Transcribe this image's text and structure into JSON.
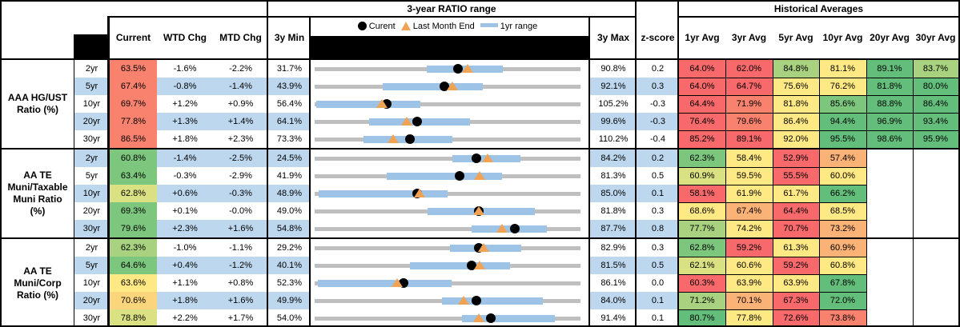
{
  "header": {
    "ratio_range_title": "3-year RATIO range",
    "historical_title": "Historical Averages",
    "legend": {
      "current": "Curent",
      "last_month": "Last Month End",
      "range": "1yr range"
    },
    "columns": {
      "current": "Current",
      "wtd": "WTD Chg",
      "mtd": "MTD Chg",
      "min": "3y Min",
      "max": "3y Max",
      "z": "z-score"
    },
    "avg_columns": [
      "1yr Avg",
      "3yr Avg",
      "5yr Avg",
      "10yr Avg",
      "20yr Avg",
      "30yr Avg"
    ]
  },
  "palette": {
    "red": "#F8696B",
    "salmon": "#F9826F",
    "orange": "#FBB277",
    "gold": "#FBD57B",
    "yellow": "#FFE984",
    "ygreen": "#DAE182",
    "lgreen": "#A8D27F",
    "mgreen": "#7CC67E",
    "green": "#63BE7B",
    "band_blue": "#BDD7EE",
    "bar_blue": "#9DC3E6",
    "track_gray": "#BFBFBF",
    "tri_orange": "#F0A355",
    "dot_black": "#000000"
  },
  "chart_data": {
    "type": "table",
    "title": "3-year RATIO range",
    "note": "Each row has a bullet chart: gray track spans 3y Min..3y Max, blue bar = 1yr range, black dot = Current, orange triangle = Last Month End. Values in percent.",
    "groups": [
      {
        "label": "AAA HG/UST Ratio (%)",
        "label_lines": [
          "AAA HG/UST",
          "Ratio (%)"
        ],
        "rows": [
          {
            "tenor": "2yr",
            "current": "63.5%",
            "current_color": "salmon",
            "wtd": "-1.6%",
            "mtd": "-2.2%",
            "min": "31.7%",
            "max": "90.8%",
            "z": "0.2",
            "range": {
              "min": 31.7,
              "max": 90.8,
              "bar_lo": 56.6,
              "bar_hi": 73.5,
              "current": 63.5,
              "last_month": 65.7
            },
            "avgs": [
              {
                "v": "64.0%",
                "c": "red"
              },
              {
                "v": "62.0%",
                "c": "red"
              },
              {
                "v": "84.8%",
                "c": "lgreen"
              },
              {
                "v": "81.1%",
                "c": "yellow"
              },
              {
                "v": "89.1%",
                "c": "green"
              },
              {
                "v": "83.7%",
                "c": "lgreen"
              }
            ]
          },
          {
            "tenor": "5yr",
            "current": "67.4%",
            "current_color": "salmon",
            "wtd": "-0.8%",
            "mtd": "-1.4%",
            "min": "43.9%",
            "max": "92.1%",
            "z": "0.3",
            "range": {
              "min": 43.9,
              "max": 92.1,
              "bar_lo": 56.2,
              "bar_hi": 74.4,
              "current": 67.4,
              "last_month": 68.8
            },
            "avgs": [
              {
                "v": "64.0%",
                "c": "red"
              },
              {
                "v": "64.7%",
                "c": "red"
              },
              {
                "v": "75.6%",
                "c": "yellow"
              },
              {
                "v": "76.2%",
                "c": "yellow"
              },
              {
                "v": "81.8%",
                "c": "green"
              },
              {
                "v": "80.0%",
                "c": "green"
              }
            ]
          },
          {
            "tenor": "10yr",
            "current": "69.7%",
            "current_color": "salmon",
            "wtd": "+1.2%",
            "mtd": "+0.9%",
            "min": "56.4%",
            "max": "105.2%",
            "z": "-0.3",
            "range": {
              "min": 56.4,
              "max": 105.2,
              "bar_lo": 56.7,
              "bar_hi": 75.8,
              "current": 69.7,
              "last_month": 68.8
            },
            "avgs": [
              {
                "v": "64.4%",
                "c": "red"
              },
              {
                "v": "71.9%",
                "c": "salmon"
              },
              {
                "v": "81.8%",
                "c": "yellow"
              },
              {
                "v": "85.6%",
                "c": "mgreen"
              },
              {
                "v": "88.8%",
                "c": "green"
              },
              {
                "v": "86.4%",
                "c": "green"
              }
            ]
          },
          {
            "tenor": "20yr",
            "current": "77.8%",
            "current_color": "salmon",
            "wtd": "+1.3%",
            "mtd": "+1.4%",
            "min": "64.1%",
            "max": "99.6%",
            "z": "-0.3",
            "range": {
              "min": 64.1,
              "max": 99.6,
              "bar_lo": 71.4,
              "bar_hi": 84.8,
              "current": 77.8,
              "last_month": 76.4
            },
            "avgs": [
              {
                "v": "76.4%",
                "c": "red"
              },
              {
                "v": "79.6%",
                "c": "salmon"
              },
              {
                "v": "86.4%",
                "c": "yellow"
              },
              {
                "v": "94.4%",
                "c": "green"
              },
              {
                "v": "96.9%",
                "c": "green"
              },
              {
                "v": "93.4%",
                "c": "green"
              }
            ]
          },
          {
            "tenor": "30yr",
            "current": "86.5%",
            "current_color": "salmon",
            "wtd": "+1.8%",
            "mtd": "+2.3%",
            "min": "73.3%",
            "max": "110.2%",
            "z": "-0.4",
            "range": {
              "min": 73.3,
              "max": 110.2,
              "bar_lo": 80.1,
              "bar_hi": 92.4,
              "current": 86.5,
              "last_month": 84.2
            },
            "avgs": [
              {
                "v": "85.2%",
                "c": "red"
              },
              {
                "v": "89.1%",
                "c": "red"
              },
              {
                "v": "92.0%",
                "c": "yellow"
              },
              {
                "v": "95.5%",
                "c": "green"
              },
              {
                "v": "98.6%",
                "c": "green"
              },
              {
                "v": "95.9%",
                "c": "green"
              }
            ]
          }
        ]
      },
      {
        "label": "AA TE Muni/Taxable Muni Ratio (%)",
        "label_lines": [
          "AA TE",
          "Muni/Taxable",
          "Muni Ratio",
          "(%)"
        ],
        "rows": [
          {
            "tenor": "2yr",
            "current": "60.8%",
            "current_color": "mgreen",
            "wtd": "-1.4%",
            "mtd": "-2.5%",
            "min": "24.5%",
            "max": "84.2%",
            "z": "0.2",
            "range": {
              "min": 24.5,
              "max": 84.2,
              "bar_lo": 55.4,
              "bar_hi": 70.7,
              "current": 60.8,
              "last_month": 63.3
            },
            "avgs": [
              {
                "v": "62.3%",
                "c": "mgreen"
              },
              {
                "v": "58.4%",
                "c": "yellow"
              },
              {
                "v": "52.9%",
                "c": "red"
              },
              {
                "v": "57.4%",
                "c": "orange"
              },
              null,
              null
            ]
          },
          {
            "tenor": "5yr",
            "current": "63.4%",
            "current_color": "mgreen",
            "wtd": "-0.3%",
            "mtd": "-2.9%",
            "min": "41.9%",
            "max": "81.3%",
            "z": "0.5",
            "range": {
              "min": 41.9,
              "max": 81.3,
              "bar_lo": 52.6,
              "bar_hi": 69.7,
              "current": 63.4,
              "last_month": 66.3
            },
            "avgs": [
              {
                "v": "60.9%",
                "c": "ygreen"
              },
              {
                "v": "59.5%",
                "c": "yellow"
              },
              {
                "v": "55.5%",
                "c": "red"
              },
              {
                "v": "60.0%",
                "c": "yellow"
              },
              null,
              null
            ]
          },
          {
            "tenor": "10yr",
            "current": "62.8%",
            "current_color": "ygreen",
            "wtd": "+0.6%",
            "mtd": "-0.3%",
            "min": "48.9%",
            "max": "85.0%",
            "z": "0.1",
            "range": {
              "min": 48.9,
              "max": 85.0,
              "bar_lo": 49.4,
              "bar_hi": 67.0,
              "current": 62.8,
              "last_month": 63.1
            },
            "avgs": [
              {
                "v": "58.1%",
                "c": "red"
              },
              {
                "v": "61.9%",
                "c": "yellow"
              },
              {
                "v": "61.7%",
                "c": "yellow"
              },
              {
                "v": "66.2%",
                "c": "green"
              },
              null,
              null
            ]
          },
          {
            "tenor": "20yr",
            "current": "69.3%",
            "current_color": "mgreen",
            "wtd": "+0.1%",
            "mtd": "-0.0%",
            "min": "49.0%",
            "max": "81.8%",
            "z": "0.3",
            "range": {
              "min": 49.0,
              "max": 81.8,
              "bar_lo": 62.9,
              "bar_hi": 76.2,
              "current": 69.3,
              "last_month": 69.3
            },
            "avgs": [
              {
                "v": "68.6%",
                "c": "yellow"
              },
              {
                "v": "67.4%",
                "c": "orange"
              },
              {
                "v": "64.4%",
                "c": "red"
              },
              {
                "v": "68.5%",
                "c": "yellow"
              },
              null,
              null
            ]
          },
          {
            "tenor": "30yr",
            "current": "79.6%",
            "current_color": "mgreen",
            "wtd": "+2.3%",
            "mtd": "+1.6%",
            "min": "54.8%",
            "max": "87.7%",
            "z": "0.8",
            "range": {
              "min": 54.8,
              "max": 87.7,
              "bar_lo": 74.2,
              "bar_hi": 83.5,
              "current": 79.6,
              "last_month": 78.0
            },
            "avgs": [
              {
                "v": "77.7%",
                "c": "lgreen"
              },
              {
                "v": "74.2%",
                "c": "yellow"
              },
              {
                "v": "70.7%",
                "c": "red"
              },
              {
                "v": "73.2%",
                "c": "orange"
              },
              null,
              null
            ]
          }
        ]
      },
      {
        "label": "AA TE Muni/Corp Ratio (%)",
        "label_lines": [
          "AA TE",
          "Muni/Corp",
          "Ratio (%)"
        ],
        "rows": [
          {
            "tenor": "2yr",
            "current": "62.3%",
            "current_color": "lgreen",
            "wtd": "-1.0%",
            "mtd": "-1.1%",
            "min": "29.2%",
            "max": "82.9%",
            "z": "0.3",
            "range": {
              "min": 29.2,
              "max": 82.9,
              "bar_lo": 56.5,
              "bar_hi": 70.9,
              "current": 62.3,
              "last_month": 63.4
            },
            "avgs": [
              {
                "v": "62.8%",
                "c": "mgreen"
              },
              {
                "v": "59.2%",
                "c": "red"
              },
              {
                "v": "61.3%",
                "c": "yellow"
              },
              {
                "v": "60.9%",
                "c": "orange"
              },
              null,
              null
            ]
          },
          {
            "tenor": "5yr",
            "current": "64.6%",
            "current_color": "mgreen",
            "wtd": "+0.4%",
            "mtd": "-1.2%",
            "min": "40.1%",
            "max": "81.5%",
            "z": "0.5",
            "range": {
              "min": 40.1,
              "max": 81.5,
              "bar_lo": 54.9,
              "bar_hi": 70.5,
              "current": 64.6,
              "last_month": 65.8
            },
            "avgs": [
              {
                "v": "62.1%",
                "c": "ygreen"
              },
              {
                "v": "60.6%",
                "c": "yellow"
              },
              {
                "v": "59.2%",
                "c": "red"
              },
              {
                "v": "60.8%",
                "c": "yellow"
              },
              null,
              null
            ]
          },
          {
            "tenor": "10yr",
            "current": "63.6%",
            "current_color": "yellow",
            "wtd": "+1.1%",
            "mtd": "+0.8%",
            "min": "52.3%",
            "max": "86.1%",
            "z": "0.0",
            "range": {
              "min": 52.3,
              "max": 86.1,
              "bar_lo": 52.7,
              "bar_hi": 69.7,
              "current": 63.6,
              "last_month": 62.8
            },
            "avgs": [
              {
                "v": "60.3%",
                "c": "red"
              },
              {
                "v": "63.9%",
                "c": "yellow"
              },
              {
                "v": "63.9%",
                "c": "yellow"
              },
              {
                "v": "67.8%",
                "c": "green"
              },
              null,
              null
            ]
          },
          {
            "tenor": "20yr",
            "current": "70.6%",
            "current_color": "gold",
            "wtd": "+1.8%",
            "mtd": "+1.6%",
            "min": "49.9%",
            "max": "84.0%",
            "z": "0.1",
            "range": {
              "min": 49.9,
              "max": 84.0,
              "bar_lo": 66.2,
              "bar_hi": 79.2,
              "current": 70.6,
              "last_month": 69.0
            },
            "avgs": [
              {
                "v": "71.2%",
                "c": "lgreen"
              },
              {
                "v": "70.1%",
                "c": "orange"
              },
              {
                "v": "67.3%",
                "c": "red"
              },
              {
                "v": "72.0%",
                "c": "green"
              },
              null,
              null
            ]
          },
          {
            "tenor": "30yr",
            "current": "78.8%",
            "current_color": "ygreen",
            "wtd": "+2.2%",
            "mtd": "+1.7%",
            "min": "54.0%",
            "max": "91.4%",
            "z": "0.1",
            "range": {
              "min": 54.0,
              "max": 91.4,
              "bar_lo": 74.7,
              "bar_hi": 87.8,
              "current": 78.8,
              "last_month": 77.1
            },
            "avgs": [
              {
                "v": "80.7%",
                "c": "green"
              },
              {
                "v": "77.8%",
                "c": "yellow"
              },
              {
                "v": "72.6%",
                "c": "red"
              },
              {
                "v": "73.8%",
                "c": "salmon"
              },
              null,
              null
            ]
          }
        ]
      }
    ]
  }
}
